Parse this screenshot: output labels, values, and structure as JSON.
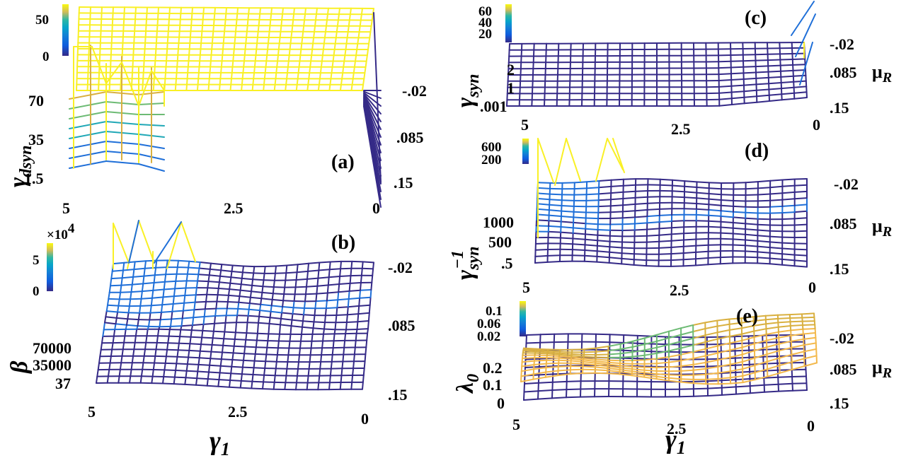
{
  "chart_data": [
    {
      "type": "surface",
      "panel_label": "(a)",
      "zlabel": "γ",
      "zlabel_sub": "dsyn",
      "x_var": "γ1",
      "y_var": "μR",
      "x_ticks": [
        "5",
        "2.5",
        "0"
      ],
      "y_ticks": [
        "-.02",
        ".085",
        ".15"
      ],
      "z_ticks": [
        "70",
        "35",
        "1.5"
      ],
      "colorbar_ticks": [
        "50",
        "0"
      ],
      "xlim": [
        5,
        0
      ],
      "ylim": [
        -0.02,
        0.15
      ],
      "zlim": [
        1.5,
        70
      ],
      "surface_plateau": 70,
      "spike_x": [
        5.0,
        4.6,
        4.2,
        3.8,
        3.4
      ],
      "spike_heights": [
        70,
        60,
        52,
        45,
        38
      ]
    },
    {
      "type": "surface",
      "panel_label": "(b)",
      "zlabel": "β",
      "zlabel_sub": "",
      "x_var": "γ1",
      "y_var": "μR",
      "x_ticks": [
        "5",
        "2.5",
        "0"
      ],
      "y_ticks": [
        "-.02",
        ".085",
        ".15"
      ],
      "z_ticks": [
        "70000",
        "35000",
        "37"
      ],
      "colorbar_ticks": [
        "5",
        "0"
      ],
      "colorbar_exponent": "×10",
      "colorbar_exponent_power": "4",
      "xlim": [
        5,
        0
      ],
      "ylim": [
        -0.02,
        0.15
      ],
      "zlim": [
        37,
        70000
      ],
      "spike_x": [
        5.0,
        4.5,
        4.0
      ],
      "spike_heights": [
        60000,
        58000,
        55000
      ]
    },
    {
      "type": "surface",
      "panel_label": "(c)",
      "zlabel": "γ",
      "zlabel_sub": "syn",
      "x_var": "γ1",
      "y_var": "μR",
      "x_ticks": [
        "5",
        "2.5",
        "0"
      ],
      "y_ticks": [
        "-.02",
        ".085",
        ".15"
      ],
      "z_ticks": [
        "2",
        "1",
        ".001"
      ],
      "colorbar_ticks": [
        "60",
        "40",
        "20"
      ],
      "xlim": [
        5,
        0
      ],
      "ylim": [
        -0.02,
        0.15
      ],
      "zlim": [
        0.001,
        3
      ]
    },
    {
      "type": "surface",
      "panel_label": "(d)",
      "zlabel": "γ",
      "zlabel_sub": "syn",
      "zlabel_sup": "−1",
      "x_var": "γ1",
      "y_var": "μR",
      "x_ticks": [
        "5",
        "2.5",
        "0"
      ],
      "y_ticks": [
        "-.02",
        ".085",
        ".15"
      ],
      "z_ticks": [
        "1000",
        "500",
        ".5"
      ],
      "colorbar_ticks": [
        "600",
        "200"
      ],
      "xlim": [
        5,
        0
      ],
      "ylim": [
        -0.02,
        0.15
      ],
      "zlim": [
        0.5,
        1500
      ],
      "spike_x": [
        5.0,
        4.6,
        4.2
      ],
      "spike_heights": [
        700,
        700,
        650
      ]
    },
    {
      "type": "surface",
      "panel_label": "(e)",
      "zlabel": "λ",
      "zlabel_sub": "0",
      "x_var": "γ1",
      "y_var": "μR",
      "x_ticks": [
        "5",
        "2.5",
        "0"
      ],
      "y_ticks": [
        "-.02",
        ".085",
        ".15"
      ],
      "z_ticks": [
        "0.2",
        "0.1",
        "0"
      ],
      "colorbar_ticks": [
        "0.1",
        "0.06",
        "0.02"
      ],
      "xlim": [
        5,
        0
      ],
      "ylim": [
        -0.02,
        0.15
      ],
      "zlim": [
        0,
        0.3
      ]
    }
  ],
  "axis_labels": {
    "x_symbol": "γ",
    "x_sub": "1",
    "mu_symbol": "μ",
    "mu_sub": "R"
  },
  "colors": {
    "dark": "#352a87",
    "blue": "#1f6fd8",
    "cyan": "#20a8b6",
    "green": "#6dbb74",
    "gold": "#d9b040",
    "yellow": "#f9f026",
    "orange": "#f3b94c"
  }
}
